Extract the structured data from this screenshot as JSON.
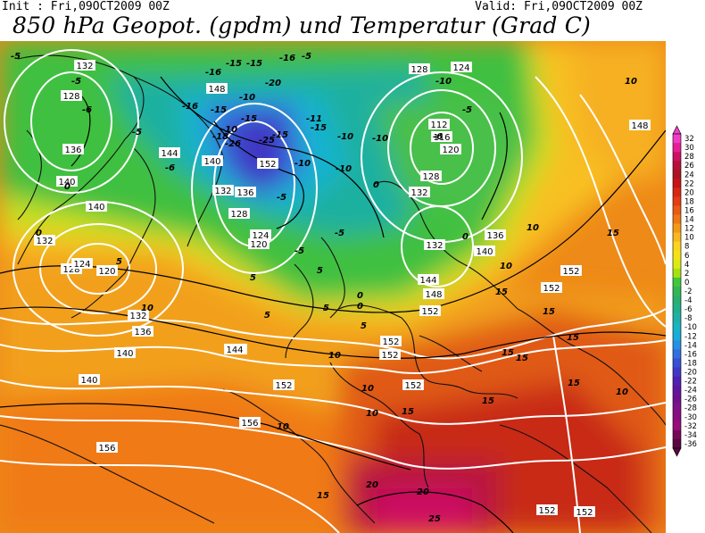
{
  "header": {
    "init": "Init : Fri,09OCT2009 00Z",
    "valid": "Valid: Fri,09OCT2009 00Z",
    "title": "850 hPa Geopot. (gpdm) und Temperatur (Grad C)"
  },
  "legend": {
    "levels": [
      32,
      30,
      28,
      26,
      24,
      22,
      20,
      18,
      16,
      14,
      12,
      10,
      8,
      6,
      4,
      2,
      0,
      -2,
      -4,
      -6,
      -8,
      -10,
      -12,
      -14,
      -16,
      -18,
      -20,
      -22,
      -24,
      -26,
      -28,
      -30,
      -32,
      -34,
      -36
    ],
    "colors": [
      "#f03cc8",
      "#e81f96",
      "#cc1064",
      "#b8103a",
      "#ac1424",
      "#c81414",
      "#d82814",
      "#e63c14",
      "#ea5a14",
      "#ee7814",
      "#f29a18",
      "#f8b81e",
      "#fcd41e",
      "#f6e214",
      "#dcea14",
      "#a6e014",
      "#40c83c",
      "#30b856",
      "#28b070",
      "#20b08c",
      "#1eb0a8",
      "#18b4c4",
      "#18acd8",
      "#2890e4",
      "#3070e0",
      "#3850d4",
      "#4038c4",
      "#5020b4",
      "#6014a0",
      "#701090",
      "#7e1088",
      "#8a0c80",
      "#980c7a",
      "#760858",
      "#5a0640"
    ],
    "labels": [
      "32",
      "30",
      "28",
      "26",
      "24",
      "22",
      "20",
      "18",
      "16",
      "14",
      "12",
      "10",
      "8",
      "6",
      "4",
      "2",
      "0",
      "-2",
      "-4",
      "-6",
      "-8",
      "-10",
      "-12",
      "-14",
      "-16",
      "-18",
      "-20",
      "-22",
      "-24",
      "-26",
      "-28",
      "-30",
      "-32",
      "-34",
      "-36"
    ]
  },
  "geopotential_labels": [
    "132",
    "128",
    "136",
    "140",
    "140",
    "132",
    "128",
    "124",
    "120",
    "148",
    "140",
    "144",
    "152",
    "136",
    "132",
    "128",
    "124",
    "120",
    "132",
    "136",
    "140",
    "140",
    "144",
    "152",
    "128",
    "124",
    "120",
    "116",
    "112",
    "128",
    "132",
    "132",
    "136",
    "140",
    "144",
    "148",
    "152",
    "152",
    "152",
    "152",
    "152",
    "152",
    "156",
    "156",
    "152",
    "152",
    "144",
    "148"
  ],
  "temperature_labels": [
    "-5",
    "-6",
    "-5",
    "-6",
    "-5",
    "0",
    "0",
    "5",
    "-15",
    "-16",
    "-15",
    "-16",
    "-15",
    "-16",
    "-15",
    "-10",
    "-18",
    "-20",
    "-25",
    "-26",
    "-15",
    "-15",
    "-11",
    "-10",
    "-10",
    "-10",
    "-10",
    "-5",
    "-10",
    "-6",
    "-5",
    "-10",
    "-5",
    "0",
    "-5",
    "-5",
    "0",
    "5",
    "5",
    "0",
    "5",
    "10",
    "10",
    "15",
    "10",
    "10",
    "10",
    "15",
    "20",
    "25",
    "20",
    "15",
    "15",
    "15",
    "15",
    "15",
    "15",
    "15",
    "15",
    "10",
    "10",
    "10",
    "5",
    "5",
    "0",
    "10"
  ]
}
